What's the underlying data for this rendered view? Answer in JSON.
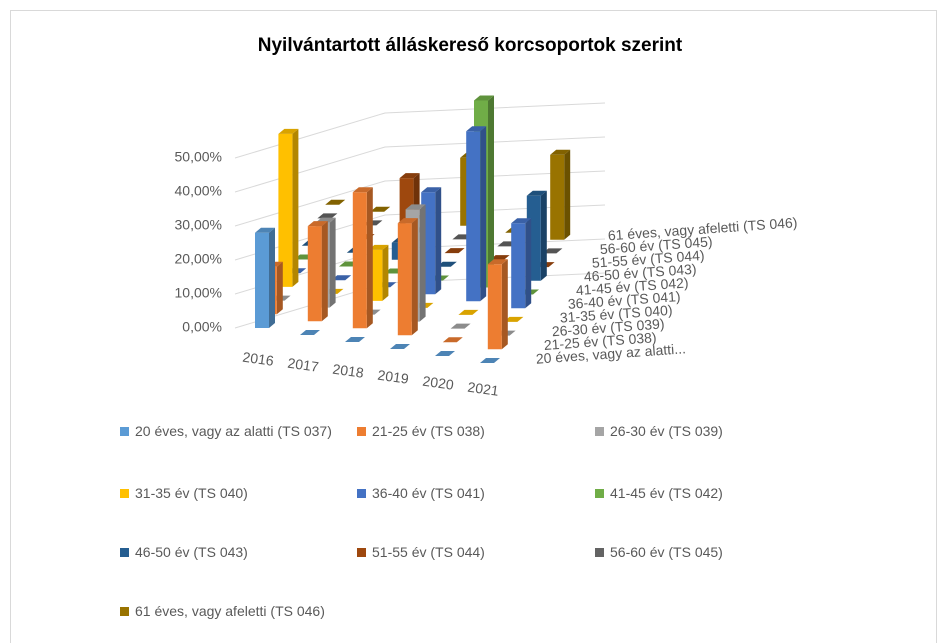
{
  "chart_data": {
    "type": "bar3d",
    "title": "Nyilvántartott álláskereső korcsoportok szerint",
    "categories": [
      "2016",
      "2017",
      "2018",
      "2019",
      "2020",
      "2021"
    ],
    "depth_labels": [
      "20 éves, vagy az alatti...",
      "21-25 év (TS 038)",
      "26-30 év (TS 039)",
      "31-35 év (TS 040)",
      "36-40 év (TS 041)",
      "41-45 év (TS 042)",
      "46-50 év (TS 043)",
      "51-55 év (TS 044)",
      "56-60 év (TS 045)",
      "61 éves, vagy afeletti (TS 046)"
    ],
    "series": [
      {
        "name": "20 éves, vagy az alatti (TS 037)",
        "color": "#5b9bd5",
        "values": [
          28,
          0,
          0,
          0,
          0,
          0
        ]
      },
      {
        "name": "21-25 év (TS 038)",
        "color": "#ed7d31",
        "values": [
          14,
          28,
          40,
          33,
          0,
          25
        ]
      },
      {
        "name": "26-30 év (TS 039)",
        "color": "#a5a5a5",
        "values": [
          0,
          25,
          0,
          33,
          0,
          0
        ]
      },
      {
        "name": "31-35 év (TS 040)",
        "color": "#ffc000",
        "values": [
          45,
          0,
          15,
          0,
          0,
          0
        ]
      },
      {
        "name": "36-40 év (TS 041)",
        "color": "#4472c4",
        "values": [
          0,
          0,
          0,
          30,
          50,
          25
        ]
      },
      {
        "name": "41-45 év (TS 042)",
        "color": "#70ad47",
        "values": [
          0,
          0,
          0,
          0,
          55,
          0
        ]
      },
      {
        "name": "46-50 év (TS 043)",
        "color": "#255e91",
        "values": [
          0,
          0,
          5,
          0,
          0,
          25
        ]
      },
      {
        "name": "51-55 év (TS 044)",
        "color": "#9e480e",
        "values": [
          0,
          0,
          20,
          0,
          0,
          0
        ]
      },
      {
        "name": "56-60 év (TS 045)",
        "color": "#636363",
        "values": [
          0,
          0,
          0,
          0,
          0,
          0
        ]
      },
      {
        "name": "61 éves, vagy afeletti (TS 046)",
        "color": "#997300",
        "values": [
          0,
          0,
          0,
          20,
          0,
          25
        ]
      }
    ],
    "ylim": [
      0,
      55
    ],
    "yticks": [
      {
        "value": 0,
        "label": "0,00%"
      },
      {
        "value": 10,
        "label": "10,00%"
      },
      {
        "value": 20,
        "label": "20,00%"
      },
      {
        "value": 30,
        "label": "30,00%"
      },
      {
        "value": 40,
        "label": "40,00%"
      },
      {
        "value": 50,
        "label": "50,00%"
      }
    ],
    "grid": true
  }
}
